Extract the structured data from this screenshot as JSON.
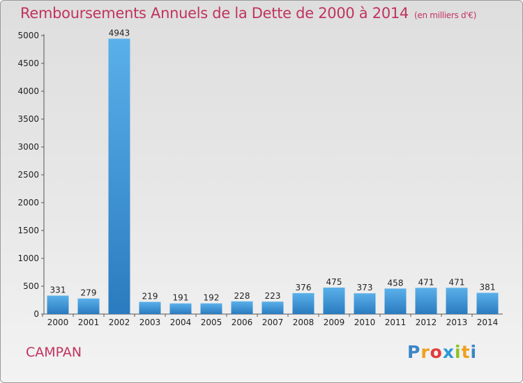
{
  "chart_data": {
    "type": "bar",
    "title": "Remboursements Annuels de la Dette de 2000 à 2014",
    "subtitle": "(en milliers d'€)",
    "categories": [
      "2000",
      "2001",
      "2002",
      "2003",
      "2004",
      "2005",
      "2006",
      "2007",
      "2008",
      "2009",
      "2010",
      "2011",
      "2012",
      "2013",
      "2014"
    ],
    "values": [
      331,
      279,
      4943,
      219,
      191,
      192,
      228,
      223,
      376,
      475,
      373,
      458,
      471,
      471,
      381
    ],
    "data_labels": [
      "331",
      "279",
      "4943",
      "219",
      "191",
      "192",
      "228",
      "223",
      "376",
      "475",
      "373",
      "458",
      "471",
      "471",
      "381"
    ],
    "ylim": [
      0,
      5000
    ],
    "yticks": [
      0,
      500,
      1000,
      1500,
      2000,
      2500,
      3000,
      3500,
      4000,
      4500,
      5000
    ],
    "ytick_labels": [
      "0",
      "500",
      "1000",
      "1500",
      "2000",
      "2500",
      "3000",
      "3500",
      "4000",
      "4500",
      "5000"
    ],
    "xlabel": "",
    "ylabel": "",
    "grid": false,
    "legend": "none",
    "bar_color": "#3f95d6"
  },
  "footer": {
    "commune": "CAMPAN",
    "logo_text": "Proxiti",
    "logo_letters": [
      "P",
      "r",
      "o",
      "x",
      "i",
      "t",
      "i"
    ]
  },
  "colors": {
    "title": "#c0335f",
    "bar_light": "#5ab0ea",
    "bar_dark": "#2a7bbf"
  }
}
